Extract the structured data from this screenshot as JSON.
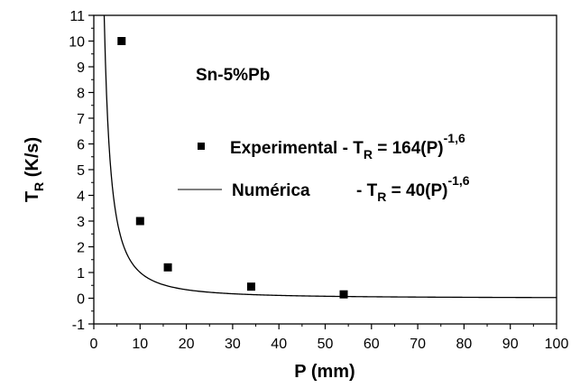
{
  "chart_data": {
    "type": "scatter",
    "xlabel": "P (mm)",
    "ylabel": {
      "main": "T",
      "sub": "R",
      "tail": " (K/s)"
    },
    "xlim": [
      0,
      100
    ],
    "ylim": [
      -1,
      11
    ],
    "x_ticks": [
      "0",
      "10",
      "20",
      "30",
      "40",
      "50",
      "60",
      "70",
      "80",
      "90",
      "100"
    ],
    "y_ticks": [
      "-1",
      "0",
      "1",
      "2",
      "3",
      "4",
      "5",
      "6",
      "7",
      "8",
      "9",
      "10",
      "11"
    ],
    "grid": false,
    "annotation": "Sn-5%Pb",
    "series": [
      {
        "name": "Experimental",
        "marker": "square",
        "color": "#000000",
        "x": [
          6,
          10,
          16,
          34,
          54
        ],
        "y": [
          10.0,
          3.0,
          1.2,
          0.45,
          0.15
        ]
      },
      {
        "name": "Numérica",
        "marker": "line",
        "color": "#000000",
        "function": {
          "coef": 40,
          "exponent": -1.6
        }
      }
    ],
    "legend": [
      {
        "label": "Experimental",
        "eq_prefix": " - T",
        "eq_sub": "R",
        "eq_mid": " = 164(P)",
        "eq_sup": "-1,6"
      },
      {
        "label": "Numérica",
        "eq_prefix": "- T",
        "eq_sub": "R",
        "eq_mid": " = 40(P)",
        "eq_sup": "-1,6"
      }
    ]
  }
}
